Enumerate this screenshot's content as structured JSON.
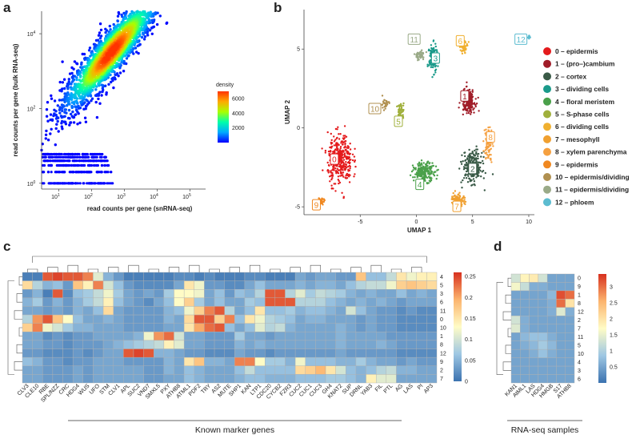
{
  "panel_labels": {
    "a": "a",
    "b": "b",
    "c": "c",
    "d": "d"
  },
  "chart_data": [
    {
      "id": "a",
      "type": "scatter",
      "xlabel": "read counts per gene (snRNA-seq)",
      "ylabel": "read counts per gene (bulk RNA-seq)",
      "x_scale": "log",
      "y_scale": "log",
      "xlim": [
        3,
        300000
      ],
      "ylim": [
        0.7,
        40000
      ],
      "x_ticks": [
        {
          "label": "10",
          "sup": "1",
          "value": 10
        },
        {
          "label": "10",
          "sup": "2",
          "value": 100
        },
        {
          "label": "10",
          "sup": "3",
          "value": 1000
        },
        {
          "label": "10",
          "sup": "4",
          "value": 10000
        },
        {
          "label": "10",
          "sup": "5",
          "value": 100000
        }
      ],
      "y_ticks": [
        {
          "label": "10",
          "sup": "0",
          "value": 1
        },
        {
          "label": "10",
          "sup": "2",
          "value": 100
        },
        {
          "label": "10",
          "sup": "4",
          "value": 10000
        }
      ],
      "legend": {
        "title": "density",
        "ticks": [
          "6000",
          "4000",
          "2000"
        ],
        "tick_values": [
          6000,
          4000,
          2000
        ],
        "range": [
          0,
          7000
        ],
        "colors": [
          "#0000ff",
          "#00aaff",
          "#00ffaa",
          "#aaff00",
          "#ffaa00",
          "#ff3300"
        ]
      },
      "density_peak": {
        "x": 400,
        "y": 3500
      },
      "grid": false
    },
    {
      "id": "b",
      "type": "scatter",
      "xlabel": "UMAP 1",
      "ylabel": "UMAP 2",
      "xlim": [
        -10,
        10.5
      ],
      "ylim": [
        -5.5,
        7.5
      ],
      "x_ticks": [
        "-5",
        "0",
        "5",
        "10"
      ],
      "x_tick_values": [
        -5,
        0,
        5,
        10
      ],
      "y_ticks": [
        "5",
        "0",
        "-5"
      ],
      "y_tick_values": [
        5,
        0,
        -5
      ],
      "clusters": [
        {
          "id": "0",
          "name": "0 – epidermis",
          "color": "#e41a1c",
          "center": [
            -6.8,
            -2.0
          ],
          "label_pos": [
            -7.3,
            -2.0
          ]
        },
        {
          "id": "1",
          "name": "1 – (pro–)cambium",
          "color": "#a01c28",
          "center": [
            4.6,
            1.7
          ],
          "label_pos": [
            4.3,
            2.0
          ]
        },
        {
          "id": "2",
          "name": "2 – cortex",
          "color": "#3a5a47",
          "center": [
            5.0,
            -2.5
          ],
          "label_pos": [
            5.0,
            -2.6
          ]
        },
        {
          "id": "3",
          "name": "3 – dividing cells",
          "color": "#1a9a8a",
          "center": [
            1.5,
            4.4
          ],
          "label_pos": [
            1.7,
            4.4
          ]
        },
        {
          "id": "4",
          "name": "4 – floral meristem",
          "color": "#4aa04a",
          "center": [
            0.7,
            -2.8
          ],
          "label_pos": [
            0.3,
            -3.6
          ]
        },
        {
          "id": "5",
          "name": "5 – S-phase cells",
          "color": "#a0b03c",
          "center": [
            -1.4,
            1.0
          ],
          "label_pos": [
            -1.6,
            0.4
          ]
        },
        {
          "id": "6",
          "name": "6 – dividing cells",
          "color": "#f0b030",
          "center": [
            4.2,
            5.2
          ],
          "label_pos": [
            3.9,
            5.5
          ]
        },
        {
          "id": "7",
          "name": "7 – mesophyll",
          "color": "#f0a030",
          "center": [
            3.7,
            -4.5
          ],
          "label_pos": [
            3.6,
            -5.0
          ]
        },
        {
          "id": "8",
          "name": "8 – xylem parenchyma",
          "color": "#f5a040",
          "center": [
            6.4,
            -1.0
          ],
          "label_pos": [
            6.6,
            -0.6
          ]
        },
        {
          "id": "9",
          "name": "9 – epidermis",
          "color": "#f08820",
          "center": [
            -8.5,
            -4.6
          ],
          "label_pos": [
            -8.9,
            -4.9
          ]
        },
        {
          "id": "10",
          "name": "10 – epidermis/dividing",
          "color": "#b09050",
          "center": [
            -2.8,
            1.5
          ],
          "label_pos": [
            -3.7,
            1.2
          ]
        },
        {
          "id": "11",
          "name": "11 – epidermis/dividing",
          "color": "#9aaa88",
          "center": [
            0.3,
            4.6
          ],
          "label_pos": [
            -0.2,
            5.6
          ]
        },
        {
          "id": "12",
          "name": "12 – phloem",
          "color": "#5cbcd0",
          "center": [
            10.0,
            5.8
          ],
          "label_pos": [
            9.3,
            5.6
          ]
        }
      ]
    },
    {
      "id": "c",
      "type": "heatmap",
      "xlabel": "Known marker genes",
      "columns": [
        "CLV3",
        "CLE10",
        "RBE",
        "SPL/NZZ",
        "CRC",
        "HDG4",
        "WUS",
        "UFO",
        "STM",
        "CLV1",
        "APL",
        "SUC2",
        "VND7",
        "SMXL5",
        "PXY",
        "ATHB8",
        "ATML1",
        "PDF2",
        "TRY",
        "AS2",
        "MUTE",
        "SHP1",
        "KAN",
        "LTP1",
        "CDC20",
        "CYCB2",
        "FZR3",
        "CUC2",
        "CUC1",
        "CUC3",
        "GH4",
        "KNAT2",
        "SUP",
        "DRNL",
        "YAB3",
        "FIL",
        "PTL",
        "AG",
        "LAS",
        "PI",
        "AP3"
      ],
      "rows": [
        "4",
        "5",
        "3",
        "6",
        "11",
        "0",
        "10",
        "1",
        "8",
        "12",
        "9",
        "2",
        "7"
      ],
      "colorbar": {
        "ticks": [
          "0.25",
          "0.2",
          "0.15",
          "0.1",
          "0.05",
          "0"
        ],
        "tick_values": [
          0.25,
          0.2,
          0.15,
          0.1,
          0.05,
          0
        ],
        "range": [
          0,
          0.26
        ],
        "colors": [
          "#3b72b0",
          "#9ec7e3",
          "#fffcc6",
          "#fcb46e",
          "#d7301f"
        ]
      },
      "values": [
        [
          0.01,
          0.01,
          0.24,
          0.25,
          0.24,
          0.24,
          0.22,
          0.11,
          0.05,
          0.03,
          0.01,
          0.01,
          0.01,
          0.01,
          0.01,
          0.02,
          0.02,
          0.01,
          0.02,
          0.01,
          0.01,
          0.01,
          0.02,
          0.02,
          0.01,
          0.01,
          0.01,
          0.04,
          0.03,
          0.04,
          0.04,
          0.03,
          0.03,
          0.18,
          0.06,
          0.06,
          0.09,
          0.15,
          0.12,
          0.14,
          0.14
        ],
        [
          0.16,
          0.08,
          0.05,
          0.06,
          0.03,
          0.18,
          0.14,
          0.22,
          0.1,
          0.06,
          0.03,
          0.02,
          0.02,
          0.02,
          0.02,
          0.04,
          0.15,
          0.12,
          0.03,
          0.03,
          0.02,
          0.02,
          0.04,
          0.06,
          0.04,
          0.04,
          0.04,
          0.05,
          0.04,
          0.05,
          0.05,
          0.04,
          0.06,
          0.08,
          0.09,
          0.09,
          0.12,
          0.17,
          0.18,
          0.17,
          0.16
        ],
        [
          0.03,
          0.05,
          0.01,
          0.24,
          0.02,
          0.06,
          0.07,
          0.09,
          0.12,
          0.07,
          0.04,
          0.03,
          0.04,
          0.03,
          0.07,
          0.13,
          0.13,
          0.12,
          0.04,
          0.06,
          0.03,
          0.06,
          0.05,
          0.08,
          0.24,
          0.24,
          0.08,
          0.11,
          0.07,
          0.09,
          0.08,
          0.07,
          0.05,
          0.04,
          0.05,
          0.04,
          0.04,
          0.06,
          0.04,
          0.05,
          0.04
        ],
        [
          0.05,
          0.07,
          0.03,
          0.05,
          0.03,
          0.05,
          0.07,
          0.09,
          0.14,
          0.06,
          0.04,
          0.03,
          0.02,
          0.04,
          0.06,
          0.13,
          0.17,
          0.07,
          0.04,
          0.06,
          0.04,
          0.04,
          0.07,
          0.06,
          0.24,
          0.24,
          0.24,
          0.08,
          0.08,
          0.08,
          0.06,
          0.05,
          0.04,
          0.05,
          0.04,
          0.05,
          0.04,
          0.03,
          0.04,
          0.04,
          0.04
        ],
        [
          0.04,
          0.04,
          0.03,
          0.04,
          0.03,
          0.05,
          0.04,
          0.06,
          0.16,
          0.04,
          0.03,
          0.03,
          0.03,
          0.03,
          0.05,
          0.06,
          0.12,
          0.17,
          0.22,
          0.24,
          0.08,
          0.04,
          0.06,
          0.15,
          0.06,
          0.06,
          0.07,
          0.05,
          0.06,
          0.06,
          0.05,
          0.04,
          0.1,
          0.06,
          0.04,
          0.03,
          0.03,
          0.02,
          0.03,
          0.02,
          0.02
        ],
        [
          0.08,
          0.21,
          0.24,
          0.18,
          0.13,
          0.06,
          0.04,
          0.04,
          0.05,
          0.04,
          0.03,
          0.03,
          0.03,
          0.03,
          0.05,
          0.04,
          0.16,
          0.24,
          0.24,
          0.17,
          0.22,
          0.06,
          0.15,
          0.12,
          0.08,
          0.07,
          0.06,
          0.04,
          0.05,
          0.05,
          0.04,
          0.04,
          0.04,
          0.03,
          0.04,
          0.03,
          0.03,
          0.02,
          0.02,
          0.02,
          0.02
        ],
        [
          0.17,
          0.22,
          0.12,
          0.1,
          0.07,
          0.05,
          0.05,
          0.04,
          0.04,
          0.04,
          0.03,
          0.03,
          0.03,
          0.03,
          0.04,
          0.04,
          0.15,
          0.2,
          0.23,
          0.24,
          0.06,
          0.04,
          0.06,
          0.11,
          0.08,
          0.09,
          0.05,
          0.04,
          0.04,
          0.04,
          0.04,
          0.05,
          0.04,
          0.03,
          0.04,
          0.03,
          0.03,
          0.02,
          0.02,
          0.02,
          0.02
        ],
        [
          0.04,
          0.04,
          0.02,
          0.03,
          0.02,
          0.03,
          0.03,
          0.04,
          0.04,
          0.04,
          0.04,
          0.05,
          0.12,
          0.21,
          0.23,
          0.1,
          0.04,
          0.04,
          0.03,
          0.03,
          0.03,
          0.07,
          0.04,
          0.04,
          0.03,
          0.04,
          0.04,
          0.04,
          0.04,
          0.04,
          0.04,
          0.05,
          0.04,
          0.04,
          0.04,
          0.04,
          0.03,
          0.03,
          0.03,
          0.03,
          0.03
        ],
        [
          0.04,
          0.04,
          0.03,
          0.03,
          0.02,
          0.03,
          0.03,
          0.03,
          0.04,
          0.05,
          0.06,
          0.07,
          0.08,
          0.09,
          0.14,
          0.11,
          0.04,
          0.04,
          0.03,
          0.03,
          0.03,
          0.05,
          0.04,
          0.05,
          0.04,
          0.04,
          0.04,
          0.04,
          0.04,
          0.04,
          0.04,
          0.05,
          0.04,
          0.04,
          0.04,
          0.05,
          0.04,
          0.03,
          0.03,
          0.03,
          0.03
        ],
        [
          0.03,
          0.03,
          0.02,
          0.02,
          0.02,
          0.03,
          0.02,
          0.03,
          0.04,
          0.04,
          0.24,
          0.25,
          0.24,
          0.05,
          0.05,
          0.04,
          0.03,
          0.03,
          0.02,
          0.02,
          0.02,
          0.04,
          0.03,
          0.03,
          0.02,
          0.03,
          0.03,
          0.03,
          0.03,
          0.03,
          0.03,
          0.04,
          0.03,
          0.03,
          0.03,
          0.03,
          0.03,
          0.02,
          0.02,
          0.02,
          0.02
        ],
        [
          0.06,
          0.05,
          0.03,
          0.03,
          0.02,
          0.03,
          0.03,
          0.04,
          0.04,
          0.04,
          0.03,
          0.03,
          0.03,
          0.03,
          0.05,
          0.04,
          0.15,
          0.18,
          0.05,
          0.05,
          0.04,
          0.22,
          0.22,
          0.13,
          0.07,
          0.07,
          0.05,
          0.12,
          0.06,
          0.06,
          0.06,
          0.05,
          0.05,
          0.07,
          0.05,
          0.04,
          0.04,
          0.03,
          0.04,
          0.03,
          0.03
        ],
        [
          0.04,
          0.04,
          0.03,
          0.03,
          0.03,
          0.04,
          0.03,
          0.04,
          0.04,
          0.04,
          0.04,
          0.04,
          0.03,
          0.03,
          0.05,
          0.04,
          0.06,
          0.05,
          0.04,
          0.04,
          0.04,
          0.06,
          0.09,
          0.06,
          0.06,
          0.06,
          0.06,
          0.16,
          0.17,
          0.19,
          0.15,
          0.1,
          0.06,
          0.05,
          0.06,
          0.08,
          0.09,
          0.05,
          0.05,
          0.04,
          0.04
        ],
        [
          0.04,
          0.04,
          0.03,
          0.03,
          0.03,
          0.04,
          0.03,
          0.04,
          0.04,
          0.04,
          0.04,
          0.04,
          0.03,
          0.03,
          0.04,
          0.04,
          0.06,
          0.05,
          0.04,
          0.04,
          0.04,
          0.05,
          0.06,
          0.06,
          0.05,
          0.05,
          0.05,
          0.06,
          0.06,
          0.06,
          0.07,
          0.07,
          0.06,
          0.05,
          0.14,
          0.11,
          0.11,
          0.04,
          0.04,
          0.04,
          0.04
        ]
      ]
    },
    {
      "id": "d",
      "type": "heatmap",
      "xlabel": "RNA-seq samples",
      "columns": [
        "KAN1",
        "AtML1",
        "LAS",
        "HDG4",
        "HMGB",
        "S17",
        "ATHB8"
      ],
      "rows": [
        "0",
        "9",
        "1",
        "8",
        "12",
        "2",
        "7",
        "11",
        "5",
        "10",
        "4",
        "3",
        "6"
      ],
      "colorbar": {
        "ticks": [
          "3",
          "2.5",
          "2",
          "1.5",
          "1",
          "0.5"
        ],
        "tick_values": [
          3,
          2.5,
          2,
          1.5,
          1,
          0.5
        ],
        "range": [
          0,
          3.4
        ],
        "colors": [
          "#3b72b0",
          "#9ec7e3",
          "#fffcc6",
          "#fcb46e",
          "#d7301f"
        ]
      },
      "values": [
        [
          1.3,
          1.8,
          1.9,
          1.3,
          0.5,
          0.5,
          0.5
        ],
        [
          1.6,
          1.2,
          0.6,
          0.6,
          0.5,
          0.5,
          0.5
        ],
        [
          0.5,
          0.5,
          0.5,
          0.5,
          0.7,
          3.2,
          3.0
        ],
        [
          0.5,
          0.5,
          0.5,
          0.5,
          0.6,
          3.0,
          2.0
        ],
        [
          0.5,
          0.5,
          0.5,
          0.5,
          0.6,
          1.4,
          0.6
        ],
        [
          1.3,
          0.6,
          0.5,
          0.5,
          0.5,
          0.5,
          0.5
        ],
        [
          1.4,
          0.6,
          0.5,
          0.5,
          0.5,
          0.5,
          0.5
        ],
        [
          0.5,
          0.7,
          0.8,
          0.8,
          0.6,
          0.5,
          0.5
        ],
        [
          0.5,
          0.6,
          0.7,
          0.9,
          0.7,
          0.5,
          0.5
        ],
        [
          0.5,
          0.5,
          0.6,
          0.8,
          0.6,
          0.5,
          0.5
        ],
        [
          0.5,
          0.5,
          0.5,
          0.5,
          0.5,
          0.5,
          0.5
        ],
        [
          0.5,
          0.5,
          0.5,
          0.5,
          0.5,
          0.5,
          0.5
        ],
        [
          0.5,
          0.5,
          0.5,
          0.5,
          0.5,
          0.5,
          0.5
        ]
      ]
    }
  ]
}
